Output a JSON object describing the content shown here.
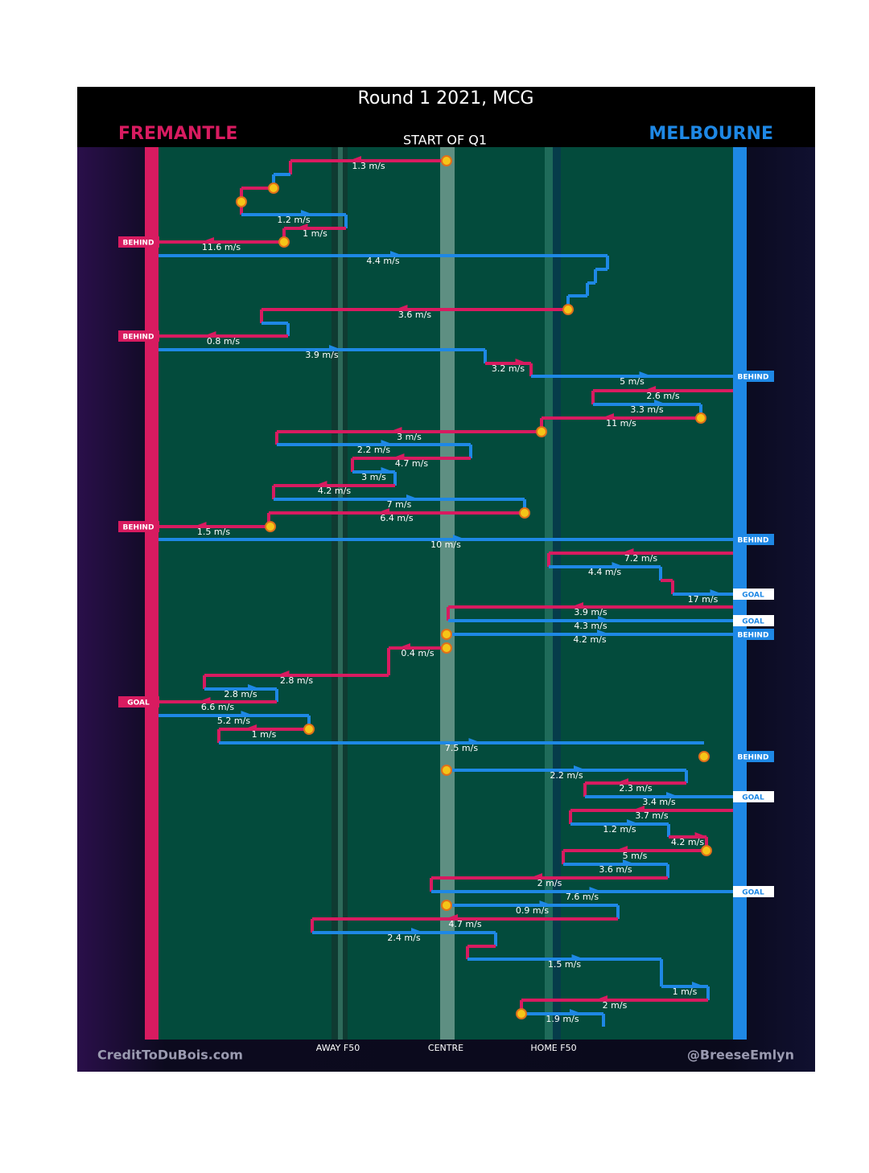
{
  "title": "Round 1 2021, MCG",
  "subtitle": "START OF Q1",
  "teams": {
    "left": "FREMANTLE",
    "right": "MELBOURNE"
  },
  "zones": [
    "AWAY F50",
    "CENTRE",
    "HOME F50"
  ],
  "credits": {
    "left": "CreditToDuBois.com",
    "right": "@BreeseEmlyn"
  },
  "speeds": [
    "1.3 m/s",
    "1.2 m/s",
    "1 m/s",
    "11.6 m/s",
    "4.4 m/s",
    "3.6 m/s",
    "0.8 m/s",
    "3.9 m/s",
    "3.2 m/s",
    "5 m/s",
    "2.6 m/s",
    "3.3 m/s",
    "11 m/s",
    "3 m/s",
    "2.2 m/s",
    "4.7 m/s",
    "3 m/s",
    "4.2 m/s",
    "7 m/s",
    "6.4 m/s",
    "1.5 m/s",
    "10 m/s",
    "7.2 m/s",
    "4.4 m/s",
    "17 m/s",
    "3.9 m/s",
    "4.3 m/s",
    "4.2 m/s",
    "0.4 m/s",
    "2.8 m/s",
    "2.8 m/s",
    "6.6 m/s",
    "5.2 m/s",
    "1 m/s",
    "7.5 m/s",
    "2.2 m/s",
    "2.3 m/s",
    "3.4 m/s",
    "3.7 m/s",
    "1.2 m/s",
    "4.2 m/s",
    "5 m/s",
    "3.6 m/s",
    "2 m/s",
    "7.6 m/s",
    "0.9 m/s",
    "4.7 m/s",
    "2.4 m/s",
    "1.5 m/s",
    "1 m/s",
    "2 m/s",
    "1.9 m/s"
  ],
  "outcomes": [
    "BEHIND",
    "BEHIND",
    "BEHIND",
    "BEHIND",
    "BEHIND",
    "GOAL",
    "GOAL",
    "BEHIND",
    "GOAL",
    "BEHIND",
    "GOAL"
  ]
}
